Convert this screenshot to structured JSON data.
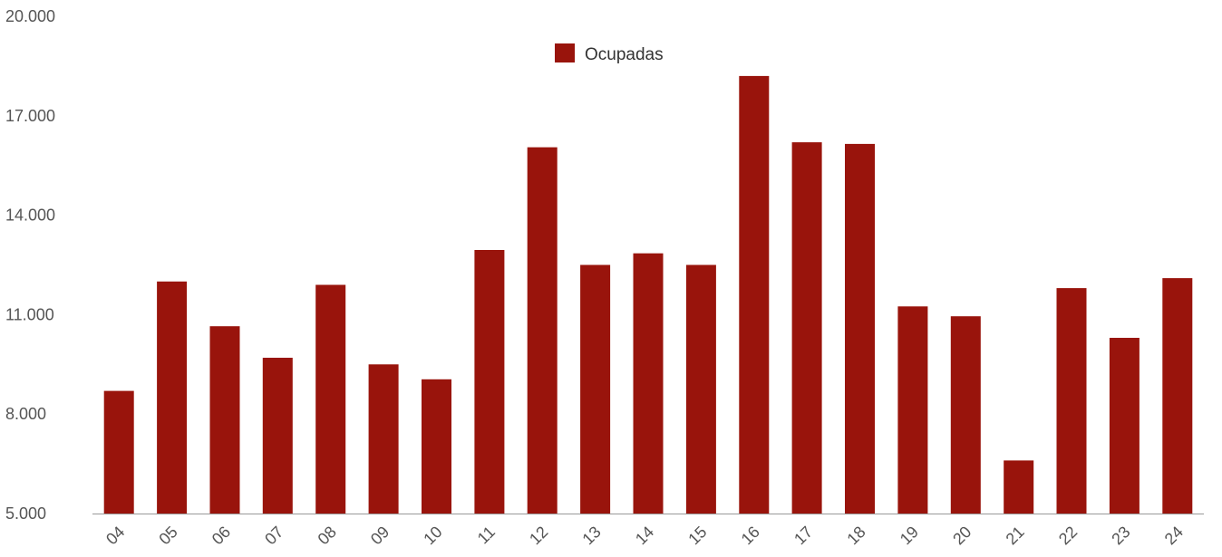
{
  "chart_data": {
    "type": "bar",
    "categories": [
      "04",
      "05",
      "06",
      "07",
      "08",
      "09",
      "10",
      "11",
      "12",
      "13",
      "14",
      "15",
      "16",
      "17",
      "18",
      "19",
      "20",
      "21",
      "22",
      "23",
      "24"
    ],
    "series": [
      {
        "name": "Ocupadas",
        "color": "#99140c",
        "values": [
          8700,
          12000,
          10650,
          9700,
          11900,
          9500,
          9050,
          12950,
          16050,
          12500,
          12850,
          12500,
          18200,
          16200,
          16150,
          11250,
          10950,
          6600,
          11800,
          10300,
          12100
        ]
      }
    ],
    "yticks": [
      "5.000",
      "8.000",
      "11.000",
      "14.000",
      "17.000",
      "20.000"
    ],
    "ylim": [
      5000,
      20000
    ],
    "legend_position": "top-center",
    "grid": false,
    "title": "",
    "xlabel": "",
    "ylabel": ""
  }
}
